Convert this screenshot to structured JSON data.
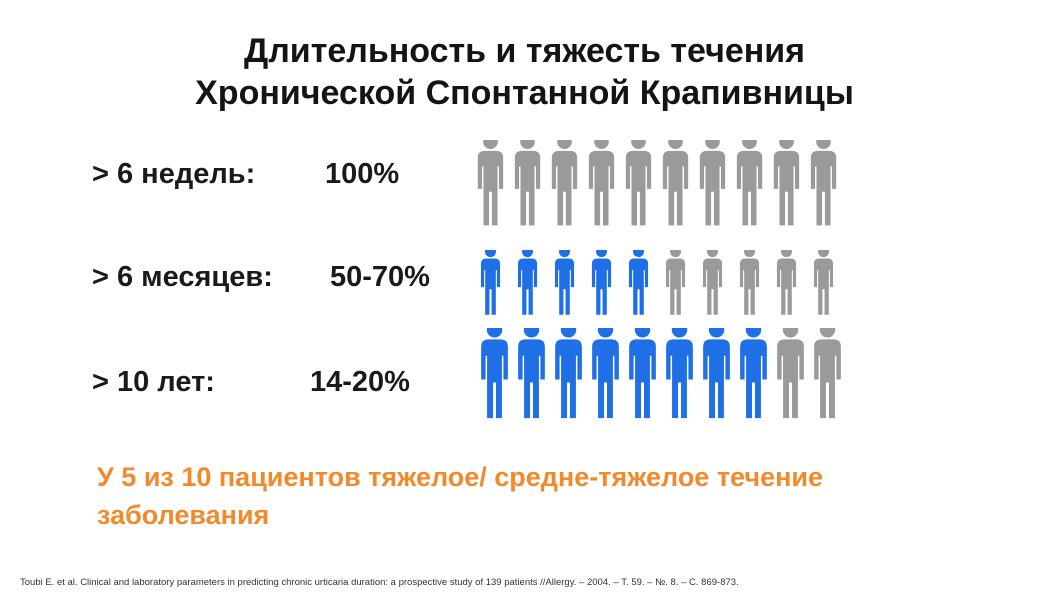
{
  "title": {
    "line1": "Длительность и тяжесть течения",
    "line2": "Хронической Спонтанной Крапивницы"
  },
  "rows": [
    {
      "label": "> 6 недель:",
      "value": "100%",
      "total": 10,
      "highlighted": 0
    },
    {
      "label": "> 6 месяцев:",
      "value": "50-70%",
      "total": 10,
      "highlighted": 5
    },
    {
      "label": "> 10 лет:",
      "value": "14-20%",
      "total": 10,
      "highlighted": 8
    }
  ],
  "conclusion": "У 5 из 10 пациентов  тяжелое/ средне-тяжелое течение заболевания",
  "reference": "Toubi E. et al. Clinical and laboratory parameters in predicting chronic urticaria duration: a prospective study of 139 patients //Allergy. – 2004. – Т. 59. – №. 8. – С. 869-873.",
  "colors": {
    "person_gray": "#9a9a9a",
    "person_blue": "#1f6fe6",
    "conclusion": "#f28a2b"
  },
  "icons": {
    "person": "person-icon"
  }
}
